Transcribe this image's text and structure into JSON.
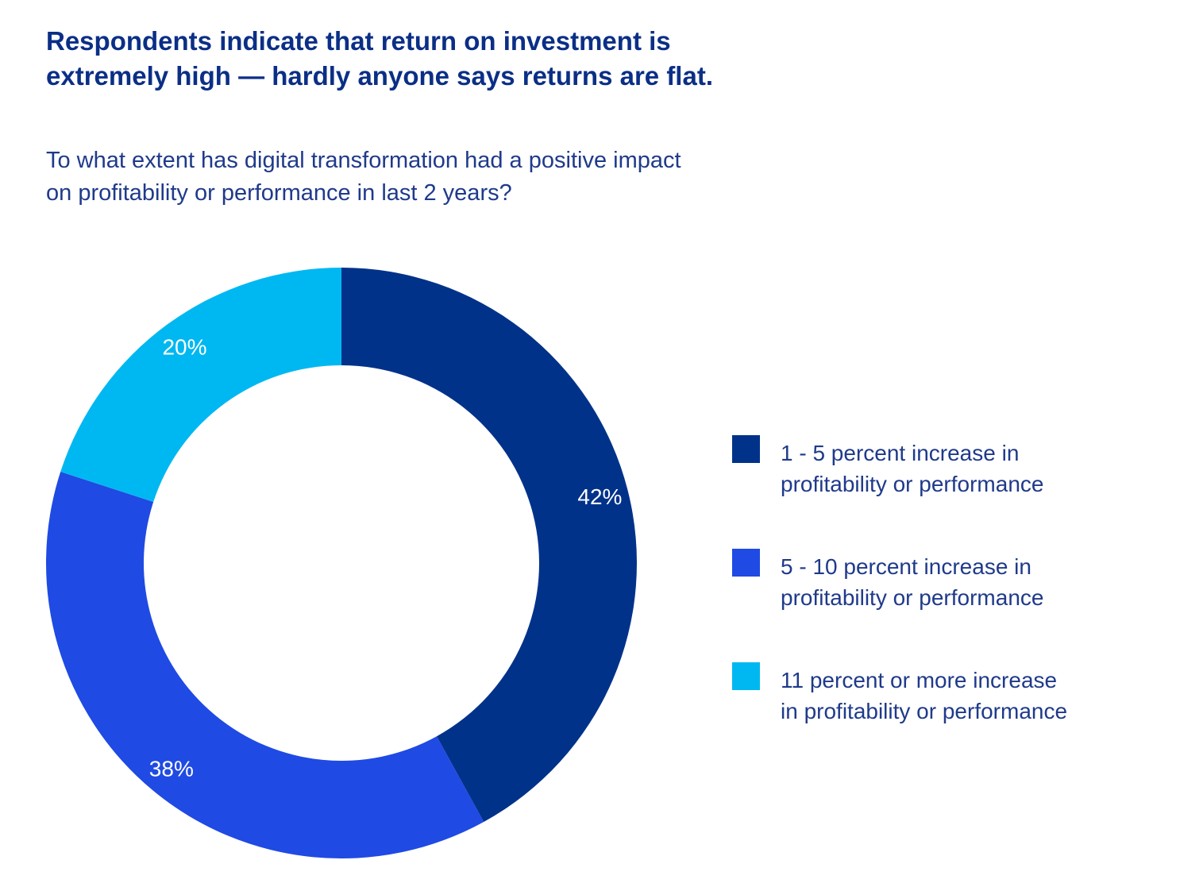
{
  "title_lines": [
    "Respondents indicate that return on investment is",
    "extremely high — hardly anyone says returns are flat."
  ],
  "subtitle_lines": [
    "To what extent has digital transformation had a positive impact",
    "on profitability or performance in last 2 years?"
  ],
  "colors": {
    "slice_1": "#01328a",
    "slice_2": "#1f4ae3",
    "slice_3": "#00b8f1",
    "text_dark": "#0b2f86",
    "text_mid": "#1f3a8a"
  },
  "chart_data": {
    "type": "pie",
    "variant": "donut",
    "categories": [
      "1 - 5 percent increase in profitability or performance",
      "5 - 10 percent increase in profitability or performance",
      "11 percent or more increase in profitability or performance"
    ],
    "values": [
      42,
      38,
      20
    ],
    "data_labels": [
      "42%",
      "38%",
      "20%"
    ],
    "legend_placement": "right",
    "start_angle": "12 o'clock",
    "direction": "clockwise"
  },
  "legend": [
    {
      "line1": "1 - 5 percent increase in",
      "line2": "profitability or performance",
      "color": "#01328a"
    },
    {
      "line1": "5 - 10 percent increase in",
      "line2": "profitability or performance",
      "color": "#1f4ae3"
    },
    {
      "line1": "11 percent or more increase",
      "line2": "in profitability or performance",
      "color": "#00b8f1"
    }
  ]
}
